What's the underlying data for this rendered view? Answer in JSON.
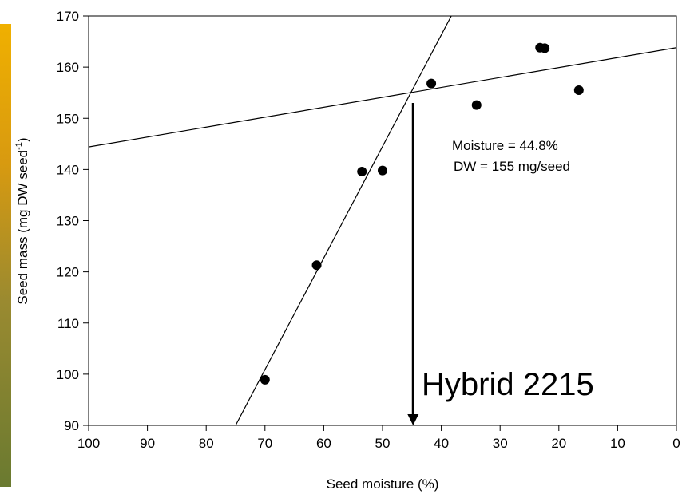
{
  "chart_data": {
    "type": "scatter",
    "x_label": "Seed moisture (%)",
    "y_label": "Seed mass (mg DW seed",
    "y_label_sup": "-1",
    "y_label_end": ")",
    "x": [
      70.0,
      61.2,
      53.5,
      50.0,
      41.7,
      34.0,
      23.2,
      22.4,
      16.6
    ],
    "values": [
      98.9,
      121.3,
      139.6,
      139.8,
      156.8,
      152.6,
      163.8,
      163.7,
      155.5
    ],
    "color": "#000000",
    "lines": [
      {
        "x": [
          75,
          38.3
        ],
        "y": [
          90,
          170
        ]
      },
      {
        "x": [
          100,
          0
        ],
        "y": [
          144.4,
          163.8
        ]
      }
    ],
    "arrow": {
      "x": 44.8,
      "y": [
        153,
        90
      ]
    },
    "annotations": [
      "Moisture = 44.8%",
      "DW = 155 mg/seed"
    ],
    "label": "Hybrid 2215",
    "xlim": [
      100,
      0
    ],
    "xticks": [
      100,
      90,
      80,
      70,
      60,
      50,
      40,
      30,
      20,
      10,
      0
    ],
    "ylim": [
      90,
      170
    ],
    "yticks": [
      90,
      100,
      110,
      120,
      130,
      140,
      150,
      160,
      170
    ]
  }
}
